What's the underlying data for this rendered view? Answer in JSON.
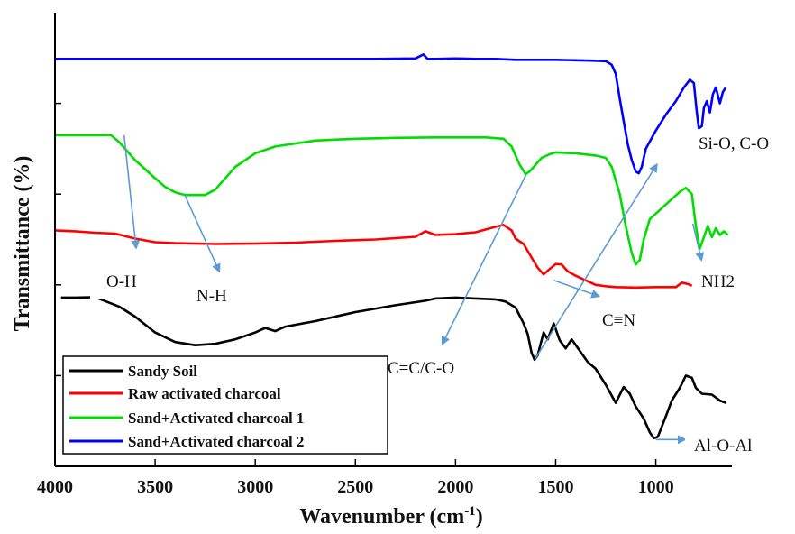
{
  "chart_data": {
    "type": "line",
    "xlabel": "Wavenumber (cm",
    "xlabel_sup": "-1",
    "xlabel_close": ")",
    "ylabel": "Transmittance (%)",
    "x_reversed": true,
    "xlim": [
      4000,
      620
    ],
    "ylim": [
      0,
      100
    ],
    "x_ticks": [
      4000,
      3500,
      3000,
      2500,
      2000,
      1500,
      1000
    ],
    "x_tick_labels": [
      "4000",
      "3500",
      "3000",
      "2500",
      "2000",
      "1500",
      "1000"
    ],
    "y_ticks_unlabeled": [
      20,
      40,
      60,
      80
    ],
    "grid": false,
    "legend_position": "bottom-left",
    "series": [
      {
        "name": "Sandy Soil",
        "color": "#000000",
        "points": [
          [
            3970,
            37.2
          ],
          [
            3900,
            37.2
          ],
          [
            3800,
            37.3
          ],
          [
            3680,
            35.2
          ],
          [
            3600,
            33.0
          ],
          [
            3500,
            29.5
          ],
          [
            3400,
            27.4
          ],
          [
            3300,
            26.7
          ],
          [
            3200,
            27.0
          ],
          [
            3100,
            28.0
          ],
          [
            3000,
            29.5
          ],
          [
            2950,
            30.5
          ],
          [
            2900,
            29.8
          ],
          [
            2850,
            30.8
          ],
          [
            2700,
            32.0
          ],
          [
            2500,
            34.0
          ],
          [
            2300,
            35.5
          ],
          [
            2150,
            36.5
          ],
          [
            2100,
            37.0
          ],
          [
            2000,
            37.2
          ],
          [
            1900,
            37.0
          ],
          [
            1800,
            36.8
          ],
          [
            1750,
            36.3
          ],
          [
            1700,
            35.0
          ],
          [
            1660,
            31.5
          ],
          [
            1640,
            29.2
          ],
          [
            1620,
            25.0
          ],
          [
            1605,
            23.5
          ],
          [
            1590,
            24.5
          ],
          [
            1560,
            29.5
          ],
          [
            1540,
            28.0
          ],
          [
            1510,
            31.5
          ],
          [
            1480,
            27.8
          ],
          [
            1450,
            26.0
          ],
          [
            1420,
            28.0
          ],
          [
            1380,
            25.5
          ],
          [
            1340,
            23.0
          ],
          [
            1300,
            21.5
          ],
          [
            1250,
            18.0
          ],
          [
            1200,
            14.0
          ],
          [
            1160,
            17.5
          ],
          [
            1130,
            16.0
          ],
          [
            1100,
            13.2
          ],
          [
            1060,
            10.5
          ],
          [
            1030,
            7.5
          ],
          [
            1010,
            6.2
          ],
          [
            990,
            6.5
          ],
          [
            950,
            11.0
          ],
          [
            920,
            14.5
          ],
          [
            880,
            17.3
          ],
          [
            850,
            20.0
          ],
          [
            820,
            19.5
          ],
          [
            800,
            17.3
          ],
          [
            770,
            16.0
          ],
          [
            720,
            15.8
          ],
          [
            680,
            14.5
          ],
          [
            650,
            14.0
          ]
        ]
      },
      {
        "name": "Raw activated charcoal",
        "color": "#ff0000",
        "points": [
          [
            4000,
            52.0
          ],
          [
            3900,
            51.8
          ],
          [
            3800,
            51.5
          ],
          [
            3700,
            51.3
          ],
          [
            3600,
            50.2
          ],
          [
            3500,
            49.4
          ],
          [
            3400,
            49.2
          ],
          [
            3200,
            49.0
          ],
          [
            3000,
            49.1
          ],
          [
            2800,
            49.3
          ],
          [
            2600,
            49.7
          ],
          [
            2400,
            50.0
          ],
          [
            2200,
            50.6
          ],
          [
            2150,
            51.8
          ],
          [
            2100,
            51.0
          ],
          [
            2000,
            51.2
          ],
          [
            1900,
            51.6
          ],
          [
            1800,
            52.8
          ],
          [
            1760,
            53.2
          ],
          [
            1720,
            52.0
          ],
          [
            1700,
            50.2
          ],
          [
            1660,
            49.0
          ],
          [
            1620,
            46.0
          ],
          [
            1590,
            43.8
          ],
          [
            1560,
            42.3
          ],
          [
            1530,
            43.5
          ],
          [
            1500,
            44.6
          ],
          [
            1470,
            44.5
          ],
          [
            1440,
            43.0
          ],
          [
            1400,
            42.0
          ],
          [
            1350,
            41.0
          ],
          [
            1300,
            40.0
          ],
          [
            1250,
            39.7
          ],
          [
            1200,
            39.5
          ],
          [
            1100,
            39.4
          ],
          [
            1000,
            39.5
          ],
          [
            900,
            39.5
          ],
          [
            870,
            40.5
          ],
          [
            840,
            40.2
          ],
          [
            820,
            39.8
          ]
        ]
      },
      {
        "name": "Sand+Activated charcoal 1",
        "color": "#00dd00",
        "points": [
          [
            4000,
            73.0
          ],
          [
            3900,
            73.0
          ],
          [
            3800,
            73.0
          ],
          [
            3720,
            73.0
          ],
          [
            3680,
            71.5
          ],
          [
            3600,
            67.5
          ],
          [
            3500,
            63.5
          ],
          [
            3450,
            61.6
          ],
          [
            3400,
            60.4
          ],
          [
            3350,
            59.8
          ],
          [
            3250,
            59.8
          ],
          [
            3200,
            61.0
          ],
          [
            3150,
            63.5
          ],
          [
            3100,
            66.0
          ],
          [
            3000,
            69.0
          ],
          [
            2900,
            70.5
          ],
          [
            2700,
            71.8
          ],
          [
            2500,
            72.2
          ],
          [
            2300,
            72.4
          ],
          [
            2100,
            72.5
          ],
          [
            2000,
            72.5
          ],
          [
            1850,
            72.5
          ],
          [
            1760,
            72.2
          ],
          [
            1720,
            70.5
          ],
          [
            1680,
            66.5
          ],
          [
            1650,
            64.4
          ],
          [
            1630,
            65.0
          ],
          [
            1600,
            66.5
          ],
          [
            1570,
            68.0
          ],
          [
            1530,
            68.8
          ],
          [
            1500,
            69.2
          ],
          [
            1450,
            69.1
          ],
          [
            1400,
            69.0
          ],
          [
            1300,
            68.5
          ],
          [
            1250,
            68.0
          ],
          [
            1220,
            66.0
          ],
          [
            1180,
            60.0
          ],
          [
            1150,
            53.0
          ],
          [
            1120,
            47.0
          ],
          [
            1100,
            44.5
          ],
          [
            1080,
            45.5
          ],
          [
            1060,
            50.0
          ],
          [
            1030,
            54.5
          ],
          [
            980,
            56.5
          ],
          [
            930,
            58.5
          ],
          [
            880,
            60.5
          ],
          [
            850,
            61.4
          ],
          [
            820,
            60.0
          ],
          [
            800,
            53.0
          ],
          [
            780,
            48.0
          ],
          [
            760,
            50.5
          ],
          [
            740,
            53.0
          ],
          [
            720,
            50.5
          ],
          [
            700,
            52.5
          ],
          [
            680,
            51.0
          ],
          [
            660,
            51.8
          ],
          [
            640,
            51.0
          ]
        ]
      },
      {
        "name": "Sand+Activated charcoal 2",
        "color": "#0000ff",
        "points": [
          [
            4000,
            89.8
          ],
          [
            3800,
            89.8
          ],
          [
            3600,
            89.8
          ],
          [
            3400,
            89.8
          ],
          [
            3200,
            89.8
          ],
          [
            3000,
            89.8
          ],
          [
            2800,
            89.8
          ],
          [
            2600,
            89.8
          ],
          [
            2400,
            89.8
          ],
          [
            2200,
            89.9
          ],
          [
            2160,
            90.8
          ],
          [
            2140,
            89.8
          ],
          [
            2100,
            89.8
          ],
          [
            2000,
            89.9
          ],
          [
            1900,
            89.8
          ],
          [
            1800,
            89.8
          ],
          [
            1700,
            89.6
          ],
          [
            1600,
            89.6
          ],
          [
            1500,
            89.6
          ],
          [
            1400,
            89.5
          ],
          [
            1300,
            89.4
          ],
          [
            1250,
            89.3
          ],
          [
            1220,
            88.5
          ],
          [
            1200,
            86.5
          ],
          [
            1180,
            81.0
          ],
          [
            1160,
            76.0
          ],
          [
            1140,
            71.0
          ],
          [
            1120,
            67.5
          ],
          [
            1100,
            65.0
          ],
          [
            1085,
            64.6
          ],
          [
            1070,
            66.0
          ],
          [
            1050,
            70.0
          ],
          [
            1000,
            74.0
          ],
          [
            950,
            77.5
          ],
          [
            900,
            80.5
          ],
          [
            860,
            83.5
          ],
          [
            830,
            85.2
          ],
          [
            810,
            84.5
          ],
          [
            795,
            78.0
          ],
          [
            785,
            74.5
          ],
          [
            770,
            75.0
          ],
          [
            760,
            79.0
          ],
          [
            745,
            80.5
          ],
          [
            730,
            78.0
          ],
          [
            715,
            82.0
          ],
          [
            700,
            83.5
          ],
          [
            680,
            80.0
          ],
          [
            665,
            82.5
          ],
          [
            650,
            83.5
          ]
        ]
      }
    ],
    "annotations": [
      {
        "text": "O-H",
        "arrow_from": [
          3655,
          73.0
        ],
        "arrow_to": [
          3595,
          48.2
        ]
      },
      {
        "text": "N-H",
        "arrow_from": [
          3352,
          59.8
        ],
        "arrow_to": [
          3180,
          43.0
        ]
      },
      {
        "text": "C=C/C-O",
        "arrow_from": [
          1648,
          64.3
        ],
        "arrow_to": [
          2065,
          27.0
        ]
      },
      {
        "text": "C≡N",
        "arrow_from": [
          1510,
          41.0
        ],
        "arrow_to": [
          1285,
          37.5
        ]
      },
      {
        "text": "Si-O,  C-O",
        "arrow_from": [
          1605,
          23.5
        ],
        "arrow_to": [
          995,
          66.5
        ]
      },
      {
        "text": "NH2",
        "arrow_from": [
          815,
          53.5
        ],
        "arrow_to": [
          772,
          45.5
        ]
      },
      {
        "text": "Al-O-Al",
        "arrow_from": [
          1000,
          5.9
        ],
        "arrow_to": [
          855,
          5.9
        ]
      }
    ]
  }
}
